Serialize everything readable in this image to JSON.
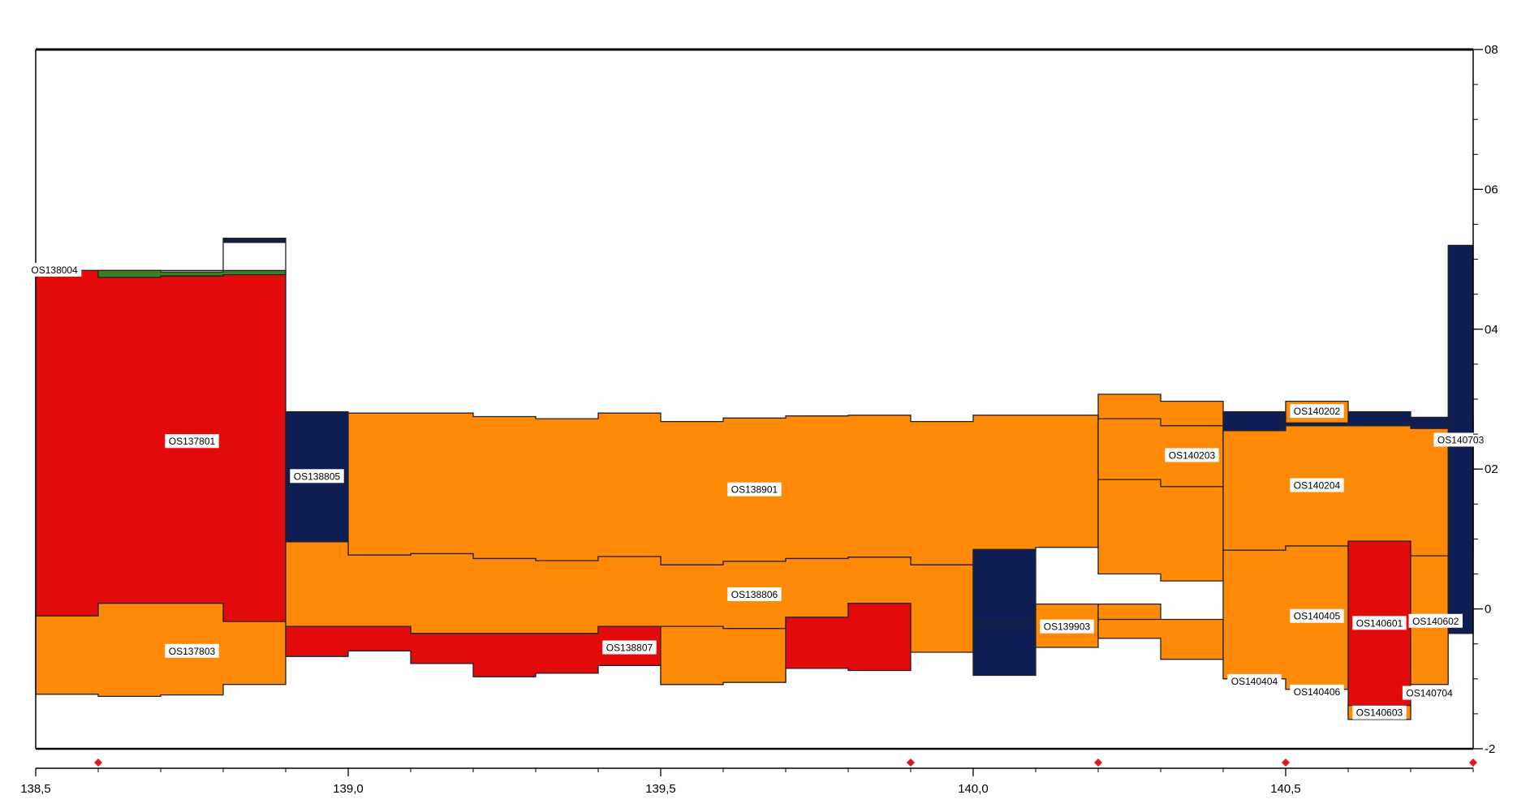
{
  "chart_data": {
    "type": "area",
    "title": "",
    "xlabel": "",
    "ylabel": "",
    "xlim": [
      138.5,
      140.8
    ],
    "ylim": [
      -2,
      8
    ],
    "x_ticks": [
      {
        "value": 138.5,
        "label": "138,5"
      },
      {
        "value": 139.0,
        "label": "139,0"
      },
      {
        "value": 139.5,
        "label": "139,5"
      },
      {
        "value": 140.0,
        "label": "140,0"
      },
      {
        "value": 140.5,
        "label": "140,5"
      }
    ],
    "y_ticks": [
      {
        "value": 8,
        "label": "08"
      },
      {
        "value": 6,
        "label": "06"
      },
      {
        "value": 4,
        "label": "04"
      },
      {
        "value": 2,
        "label": "02"
      },
      {
        "value": 0,
        "label": "0"
      },
      {
        "value": -2,
        "label": "-2"
      }
    ],
    "grid": false,
    "markers": {
      "color": "#dd1a1a",
      "x": [
        138.6,
        139.9,
        140.2,
        140.5,
        140.8
      ]
    },
    "colors": {
      "red": "#e20a0a",
      "orange": "#ff8a08",
      "navy": "#0f1e52",
      "green": "#3c7f22",
      "outline": "#222222"
    },
    "layers": [
      {
        "color": "navy",
        "top": [
          [
            138.5,
            4.84
          ],
          [
            138.6,
            4.84
          ],
          [
            138.8,
            5.3
          ],
          [
            138.9,
            5.3
          ]
        ],
        "bottom": [
          [
            138.5,
            4.84
          ],
          [
            138.6,
            4.84
          ],
          [
            138.8,
            5.24
          ],
          [
            138.9,
            5.24
          ]
        ]
      },
      {
        "color": "green",
        "top": [
          [
            138.6,
            4.84
          ],
          [
            138.7,
            4.82
          ],
          [
            138.8,
            4.84
          ],
          [
            138.9,
            4.84
          ]
        ],
        "bottom": [
          [
            138.6,
            4.74
          ],
          [
            138.7,
            4.76
          ],
          [
            138.8,
            4.78
          ],
          [
            138.9,
            4.78
          ]
        ]
      },
      {
        "color": "red",
        "label": "OS137801",
        "labelPos": [
          138.75,
          2.4
        ],
        "top": [
          [
            138.5,
            4.84
          ],
          [
            138.6,
            4.74
          ],
          [
            138.7,
            4.76
          ],
          [
            138.8,
            4.78
          ],
          [
            138.9,
            5.24
          ]
        ],
        "bottom": [
          [
            138.5,
            -0.1
          ],
          [
            138.6,
            0.08
          ],
          [
            138.7,
            0.08
          ],
          [
            138.8,
            -0.18
          ],
          [
            138.9,
            -0.18
          ]
        ]
      },
      {
        "color": "orange",
        "label": "OS137803",
        "labelPos": [
          138.75,
          -0.6
        ],
        "top": [
          [
            138.5,
            -0.1
          ],
          [
            138.6,
            0.08
          ],
          [
            138.7,
            0.08
          ],
          [
            138.8,
            -0.18
          ],
          [
            138.9,
            -0.18
          ]
        ],
        "bottom": [
          [
            138.5,
            -1.22
          ],
          [
            138.6,
            -1.25
          ],
          [
            138.7,
            -1.23
          ],
          [
            138.8,
            -1.08
          ],
          [
            138.9,
            -1.08
          ]
        ]
      },
      {
        "color": "navy",
        "label": "OS138805",
        "labelPos": [
          138.95,
          1.9
        ],
        "top": [
          [
            138.9,
            2.82
          ],
          [
            139.0,
            2.82
          ]
        ],
        "bottom": [
          [
            138.9,
            0.96
          ],
          [
            139.0,
            0.96
          ]
        ]
      },
      {
        "color": "orange",
        "label": "OS138901",
        "labelPos": [
          139.65,
          1.71
        ],
        "top": [
          [
            139.0,
            2.8
          ],
          [
            139.1,
            2.8
          ],
          [
            139.2,
            2.75
          ],
          [
            139.3,
            2.72
          ],
          [
            139.4,
            2.8
          ],
          [
            139.5,
            2.68
          ],
          [
            139.6,
            2.73
          ],
          [
            139.7,
            2.76
          ],
          [
            139.8,
            2.77
          ],
          [
            139.9,
            2.68
          ],
          [
            140.0,
            2.77
          ],
          [
            140.1,
            2.77
          ],
          [
            140.2,
            2.77
          ]
        ],
        "bottom": [
          [
            139.0,
            0.77
          ],
          [
            139.1,
            0.79
          ],
          [
            139.2,
            0.72
          ],
          [
            139.3,
            0.69
          ],
          [
            139.4,
            0.75
          ],
          [
            139.5,
            0.63
          ],
          [
            139.6,
            0.68
          ],
          [
            139.7,
            0.72
          ],
          [
            139.8,
            0.74
          ],
          [
            139.9,
            0.63
          ],
          [
            140.0,
            0.83
          ],
          [
            140.1,
            0.88
          ],
          [
            140.2,
            0.88
          ]
        ]
      },
      {
        "color": "orange",
        "label": "OS138806",
        "labelPos": [
          139.65,
          0.21
        ],
        "top": [
          [
            138.9,
            0.96
          ],
          [
            139.0,
            0.77
          ],
          [
            139.1,
            0.79
          ],
          [
            139.2,
            0.72
          ],
          [
            139.3,
            0.69
          ],
          [
            139.4,
            0.75
          ],
          [
            139.5,
            0.63
          ],
          [
            139.6,
            0.68
          ],
          [
            139.7,
            0.72
          ],
          [
            139.8,
            0.74
          ],
          [
            139.9,
            0.63
          ],
          [
            140.0,
            0.63
          ]
        ],
        "bottom": [
          [
            138.9,
            -0.25
          ],
          [
            139.0,
            -0.25
          ],
          [
            139.1,
            -0.35
          ],
          [
            139.2,
            -0.35
          ],
          [
            139.3,
            -0.35
          ],
          [
            139.4,
            -0.25
          ],
          [
            139.5,
            -0.25
          ],
          [
            139.6,
            -0.28
          ],
          [
            139.7,
            -0.12
          ],
          [
            139.8,
            0.08
          ],
          [
            139.9,
            -0.62
          ],
          [
            140.0,
            -0.62
          ]
        ]
      },
      {
        "color": "red",
        "label": "OS138807",
        "labelPos": [
          139.45,
          -0.55
        ],
        "top": [
          [
            138.9,
            -0.25
          ],
          [
            139.0,
            -0.25
          ],
          [
            139.1,
            -0.35
          ],
          [
            139.2,
            -0.35
          ],
          [
            139.3,
            -0.35
          ],
          [
            139.4,
            -0.25
          ],
          [
            139.5,
            -0.25
          ],
          [
            139.6,
            -0.28
          ],
          [
            139.7,
            -0.12
          ],
          [
            139.8,
            0.08
          ],
          [
            139.9,
            0.08
          ]
        ],
        "bottom": [
          [
            138.9,
            -0.68
          ],
          [
            139.0,
            -0.6
          ],
          [
            139.1,
            -0.78
          ],
          [
            139.2,
            -0.97
          ],
          [
            139.3,
            -0.92
          ],
          [
            139.4,
            -0.81
          ],
          [
            139.5,
            -1.08
          ],
          [
            139.6,
            -1.05
          ],
          [
            139.7,
            -0.85
          ],
          [
            139.8,
            -0.88
          ],
          [
            139.9,
            -0.88
          ]
        ]
      },
      {
        "color": "orange",
        "top": [
          [
            139.5,
            -0.25
          ],
          [
            139.6,
            -0.28
          ],
          [
            139.7,
            -0.28
          ]
        ],
        "bottom": [
          [
            139.5,
            -1.08
          ],
          [
            139.6,
            -1.05
          ],
          [
            139.7,
            -1.05
          ]
        ]
      },
      {
        "color": "navy",
        "top": [
          [
            140.0,
            0.85
          ],
          [
            140.1,
            0.85
          ]
        ],
        "bottom": [
          [
            140.0,
            -0.95
          ],
          [
            140.1,
            -0.95
          ]
        ]
      },
      {
        "color": "orange",
        "label": "OS139903",
        "labelPos": [
          140.15,
          -0.25
        ],
        "top": [
          [
            140.1,
            0.07
          ],
          [
            140.2,
            0.07
          ]
        ],
        "bottom": [
          [
            140.1,
            -0.55
          ],
          [
            140.2,
            -0.55
          ]
        ]
      },
      {
        "color": "orange",
        "label": "OS140203",
        "labelPos": [
          140.35,
          2.2
        ],
        "top": [
          [
            140.2,
            3.07
          ],
          [
            140.3,
            2.97
          ],
          [
            140.4,
            2.97
          ]
        ],
        "bottom": [
          [
            140.2,
            0.5
          ],
          [
            140.3,
            0.4
          ],
          [
            140.4,
            0.4
          ]
        ]
      },
      {
        "color": "orange",
        "top": [
          [
            140.2,
            0.07
          ],
          [
            140.3,
            -0.15
          ],
          [
            140.4,
            -0.15
          ]
        ],
        "bottom": [
          [
            140.2,
            -0.42
          ],
          [
            140.3,
            -0.72
          ],
          [
            140.4,
            -0.72
          ]
        ]
      },
      {
        "color": "navy",
        "top": [
          [
            140.4,
            2.82
          ],
          [
            140.5,
            2.82
          ],
          [
            140.6,
            2.82
          ],
          [
            140.7,
            2.74
          ],
          [
            140.8,
            2.74
          ]
        ],
        "bottom": [
          [
            140.4,
            2.55
          ],
          [
            140.5,
            2.62
          ],
          [
            140.6,
            2.62
          ],
          [
            140.7,
            2.58
          ],
          [
            140.8,
            2.58
          ]
        ]
      },
      {
        "color": "orange",
        "label": "OS140202",
        "labelPos": [
          140.55,
          2.83
        ],
        "top": [
          [
            140.5,
            2.97
          ],
          [
            140.6,
            2.97
          ]
        ],
        "bottom": [
          [
            140.5,
            2.66
          ],
          [
            140.6,
            2.66
          ]
        ]
      },
      {
        "color": "orange",
        "label": "OS140204",
        "labelPos": [
          140.55,
          1.77
        ],
        "top": [
          [
            140.4,
            2.55
          ],
          [
            140.5,
            2.62
          ],
          [
            140.6,
            2.62
          ],
          [
            140.7,
            2.58
          ],
          [
            140.8,
            2.58
          ]
        ],
        "bottom": [
          [
            140.4,
            0.84
          ],
          [
            140.5,
            0.9
          ],
          [
            140.6,
            0.9
          ],
          [
            140.7,
            0.76
          ],
          [
            140.8,
            0.76
          ]
        ]
      },
      {
        "color": "orange",
        "label": "OS140405",
        "labelPos": [
          140.55,
          -0.1
        ],
        "top": [
          [
            140.4,
            0.84
          ],
          [
            140.5,
            0.9
          ],
          [
            140.6,
            0.9
          ]
        ],
        "bottom": [
          [
            140.4,
            -1.0
          ],
          [
            140.5,
            -1.15
          ],
          [
            140.6,
            -1.15
          ]
        ]
      },
      {
        "color": "red",
        "label": "OS140601",
        "labelPos": [
          140.65,
          -0.2
        ],
        "top": [
          [
            140.6,
            0.97
          ],
          [
            140.7,
            0.97
          ]
        ],
        "bottom": [
          [
            140.6,
            -1.5
          ],
          [
            140.7,
            -1.5
          ]
        ]
      },
      {
        "color": "orange",
        "label": "OS140602",
        "labelPos": [
          140.74,
          -0.17
        ],
        "top": [
          [
            140.7,
            0.76
          ],
          [
            140.76,
            0.76
          ]
        ],
        "bottom": [
          [
            140.7,
            -1.08
          ],
          [
            140.76,
            -1.08
          ]
        ]
      },
      {
        "color": "orange",
        "top": [
          [
            140.6,
            -1.38
          ],
          [
            140.7,
            -1.38
          ]
        ],
        "bottom": [
          [
            140.6,
            -1.58
          ],
          [
            140.7,
            -1.58
          ]
        ]
      },
      {
        "color": "navy",
        "top": [
          [
            140.76,
            5.2
          ],
          [
            140.8,
            5.2
          ]
        ],
        "bottom": [
          [
            140.76,
            -0.35
          ],
          [
            140.8,
            -0.35
          ]
        ]
      }
    ],
    "boundaries": [
      [
        [
          140.2,
          2.72
        ],
        [
          140.3,
          2.62
        ],
        [
          140.4,
          2.62
        ]
      ],
      [
        [
          140.2,
          1.85
        ],
        [
          140.3,
          1.75
        ],
        [
          140.4,
          1.75
        ]
      ],
      [
        [
          140.0,
          -0.2
        ],
        [
          140.1,
          -0.2
        ]
      ],
      [
        [
          140.2,
          -0.15
        ],
        [
          140.3,
          -0.15
        ]
      ]
    ],
    "edge_labels": [
      {
        "text": "OS138004",
        "pos": [
          138.53,
          4.85
        ]
      },
      {
        "text": "OS140703",
        "pos": [
          140.78,
          2.42
        ]
      },
      {
        "text": "OS140404",
        "pos": [
          140.45,
          -1.03
        ]
      },
      {
        "text": "OS140406",
        "pos": [
          140.55,
          -1.18
        ]
      },
      {
        "text": "OS140704",
        "pos": [
          140.73,
          -1.2
        ]
      },
      {
        "text": "OS140603",
        "pos": [
          140.65,
          -1.48
        ]
      }
    ]
  }
}
